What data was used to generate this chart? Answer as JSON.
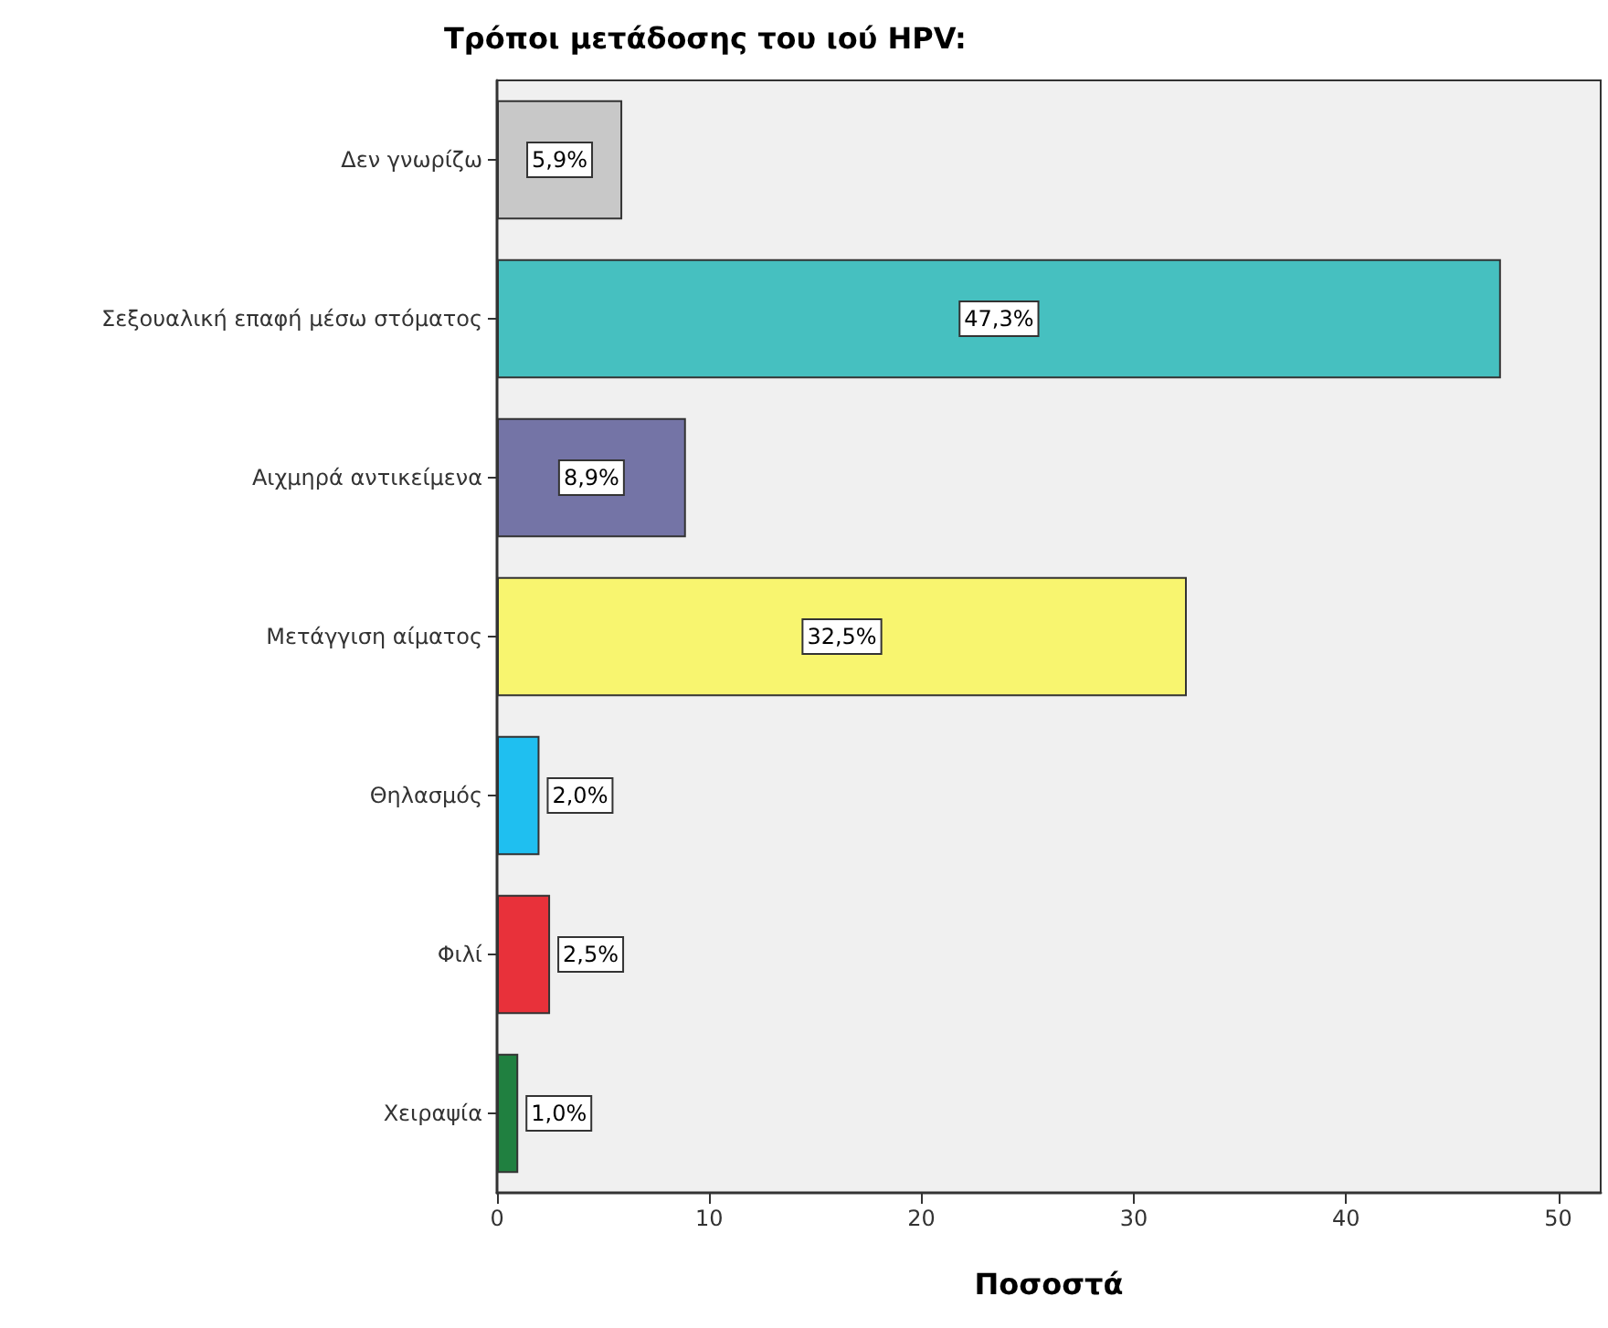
{
  "chart_data": {
    "type": "bar",
    "orientation": "horizontal",
    "title": "Τρόποι μετάδοσης του ιού HPV:",
    "xlabel": "Ποσοστά",
    "categories": [
      "Δεν γνωρίζω",
      "Σεξουαλική επαφή μέσω στόματος",
      "Αιχμηρά αντικείμενα",
      "Μετάγγιση αίματος",
      "Θηλασμός",
      "Φιλί",
      "Χειραψία"
    ],
    "values": [
      5.9,
      47.3,
      8.9,
      32.5,
      2.0,
      2.5,
      1.0
    ],
    "value_labels": [
      "5,9%",
      "47,3%",
      "8,9%",
      "32,5%",
      "2,0%",
      "2,5%",
      "1,0%"
    ],
    "colors": [
      "#c8c8c8",
      "#46c0c0",
      "#7474a6",
      "#f8f56f",
      "#1fbff0",
      "#e8313a",
      "#208040"
    ],
    "xlim": [
      0,
      52
    ],
    "xticks": [
      0,
      10,
      20,
      30,
      40,
      50
    ],
    "grid": false
  }
}
